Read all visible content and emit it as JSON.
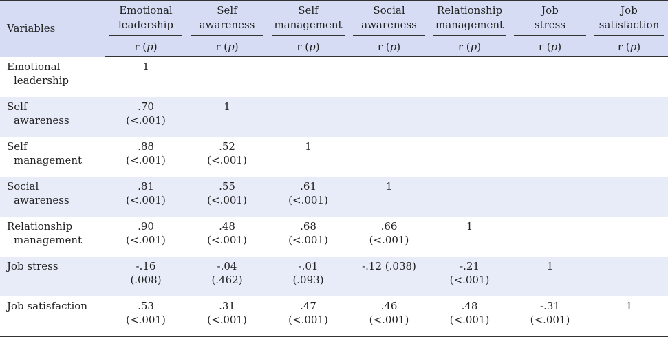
{
  "header": {
    "variables_label": "Variables",
    "columns": [
      {
        "line1": "Emotional",
        "line2": "leadership"
      },
      {
        "line1": "Self",
        "line2": "awareness"
      },
      {
        "line1": "Self",
        "line2": "management"
      },
      {
        "line1": "Social",
        "line2": "awareness"
      },
      {
        "line1": "Relationship",
        "line2": "management"
      },
      {
        "line1": "Job",
        "line2": "stress"
      },
      {
        "line1": "Job",
        "line2": "satisfaction"
      }
    ],
    "subheader": {
      "r": "r (",
      "p": "p",
      "close": ")"
    }
  },
  "rows": [
    {
      "var1": "Emotional",
      "var2": "leadership",
      "cells": [
        [
          "1",
          ""
        ],
        [
          "",
          ""
        ],
        [
          "",
          ""
        ],
        [
          "",
          ""
        ],
        [
          "",
          ""
        ],
        [
          "",
          ""
        ],
        [
          "",
          ""
        ]
      ]
    },
    {
      "var1": "Self",
      "var2": "awareness",
      "cells": [
        [
          ".70",
          "(<.001)"
        ],
        [
          "1",
          ""
        ],
        [
          "",
          ""
        ],
        [
          "",
          ""
        ],
        [
          "",
          ""
        ],
        [
          "",
          ""
        ],
        [
          "",
          ""
        ]
      ]
    },
    {
      "var1": "Self",
      "var2": "management",
      "cells": [
        [
          ".88",
          "(<.001)"
        ],
        [
          ".52",
          "(<.001)"
        ],
        [
          "1",
          ""
        ],
        [
          "",
          ""
        ],
        [
          "",
          ""
        ],
        [
          "",
          ""
        ],
        [
          "",
          ""
        ]
      ]
    },
    {
      "var1": "Social",
      "var2": "awareness",
      "cells": [
        [
          ".81",
          "(<.001)"
        ],
        [
          ".55",
          "(<.001)"
        ],
        [
          ".61",
          "(<.001)"
        ],
        [
          "1",
          ""
        ],
        [
          "",
          ""
        ],
        [
          "",
          ""
        ],
        [
          "",
          ""
        ]
      ]
    },
    {
      "var1": "Relationship",
      "var2": "management",
      "cells": [
        [
          ".90",
          "(<.001)"
        ],
        [
          ".48",
          "(<.001)"
        ],
        [
          ".68",
          "(<.001)"
        ],
        [
          ".66",
          "(<.001)"
        ],
        [
          "1",
          ""
        ],
        [
          "",
          ""
        ],
        [
          "",
          ""
        ]
      ]
    },
    {
      "var1": "Job stress",
      "var2": "",
      "cells": [
        [
          "-.16",
          "(.008)"
        ],
        [
          "-.04",
          "(.462)"
        ],
        [
          "-.01",
          "(.093)"
        ],
        [
          "-.12 (.038)",
          ""
        ],
        [
          "-.21",
          "(<.001)"
        ],
        [
          "1",
          ""
        ],
        [
          "",
          ""
        ]
      ]
    },
    {
      "var1": "Job satisfaction",
      "var2": "",
      "cells": [
        [
          ".53",
          "(<.001)"
        ],
        [
          ".31",
          "(<.001)"
        ],
        [
          ".47",
          "(<.001)"
        ],
        [
          ".46",
          "(<.001)"
        ],
        [
          ".48",
          "(<.001)"
        ],
        [
          "-.31",
          "(<.001)"
        ],
        [
          "1",
          ""
        ]
      ]
    }
  ]
}
